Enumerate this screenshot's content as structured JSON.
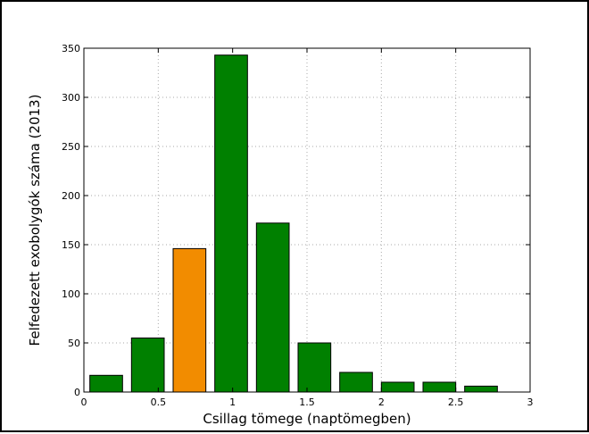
{
  "chart_data": {
    "type": "bar",
    "xlabel": "Csillag tömege (naptömegben)",
    "ylabel": "Felfedezett exobolygók száma (2013)",
    "xlim": [
      0,
      3
    ],
    "ylim": [
      0,
      350
    ],
    "xticks": [
      0,
      0.5,
      1,
      1.5,
      2,
      2.5,
      3
    ],
    "xtick_labels": [
      "0",
      "0.5",
      "1",
      "1.5",
      "2",
      "2.5",
      "3"
    ],
    "yticks": [
      0,
      50,
      100,
      150,
      200,
      250,
      300,
      350
    ],
    "ytick_labels": [
      "0",
      "50",
      "100",
      "150",
      "200",
      "250",
      "300",
      "350"
    ],
    "grid": true,
    "bar_width": 0.22,
    "bars": [
      {
        "x": 0.15,
        "value": 17,
        "color": "#008000"
      },
      {
        "x": 0.43,
        "value": 55,
        "color": "#008000"
      },
      {
        "x": 0.71,
        "value": 146,
        "color": "#f28c00"
      },
      {
        "x": 0.99,
        "value": 343,
        "color": "#008000"
      },
      {
        "x": 1.27,
        "value": 172,
        "color": "#008000"
      },
      {
        "x": 1.55,
        "value": 50,
        "color": "#008000"
      },
      {
        "x": 1.83,
        "value": 20,
        "color": "#008000"
      },
      {
        "x": 2.11,
        "value": 10,
        "color": "#008000"
      },
      {
        "x": 2.39,
        "value": 10,
        "color": "#008000"
      },
      {
        "x": 2.67,
        "value": 6,
        "color": "#008000"
      }
    ]
  }
}
